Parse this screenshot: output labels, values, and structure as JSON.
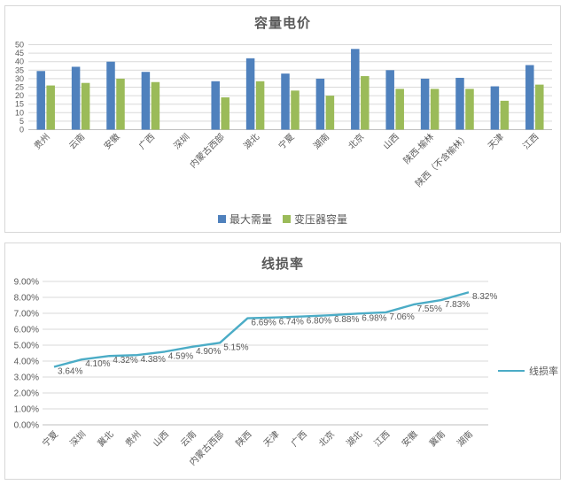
{
  "chart_data": [
    {
      "type": "bar",
      "title": "容量电价",
      "categories": [
        "贵州",
        "云南",
        "安徽",
        "广西",
        "深圳",
        "内蒙古西部",
        "湖北",
        "宁夏",
        "湖南",
        "北京",
        "山西",
        "陕西-榆林",
        "陕西（不含榆林）",
        "天津",
        "江西"
      ],
      "series": [
        {
          "name": "最大需量",
          "color": "#4F81BD",
          "values": [
            34.5,
            37,
            40,
            34,
            null,
            28.5,
            42,
            33,
            30,
            47.5,
            35,
            30,
            30.5,
            25.5,
            38
          ]
        },
        {
          "name": "变压器容量",
          "color": "#9BBB59",
          "values": [
            26,
            27.5,
            30,
            28,
            null,
            19,
            28.5,
            23,
            20,
            31.5,
            24,
            24,
            24,
            17,
            26.5
          ]
        }
      ],
      "ylim": [
        0,
        50
      ],
      "yticks": [
        "0",
        "5",
        "10",
        "15",
        "20",
        "25",
        "30",
        "35",
        "40",
        "45",
        "50"
      ],
      "grid": true,
      "legend_position": "bottom"
    },
    {
      "type": "line",
      "title": "线损率",
      "categories": [
        "宁夏",
        "深圳",
        "冀北",
        "贵州",
        "山西",
        "云南",
        "内蒙古西部",
        "陕西",
        "天津",
        "广西",
        "北京",
        "湖北",
        "江西",
        "安徽",
        "冀南",
        "湖南"
      ],
      "series": [
        {
          "name": "线损率",
          "color": "#4BACC6",
          "values": [
            3.64,
            4.1,
            4.32,
            4.38,
            4.59,
            4.9,
            5.15,
            6.69,
            6.74,
            6.8,
            6.88,
            6.98,
            7.06,
            7.55,
            7.83,
            8.32
          ]
        }
      ],
      "data_labels": [
        "3.64%",
        "4.10%",
        "4.32%",
        "4.38%",
        "4.59%",
        "4.90%",
        "5.15%",
        "6.69%",
        "6.74%",
        "6.80%",
        "6.88%",
        "6.98%",
        "7.06%",
        "7.55%",
        "7.83%",
        "8.32%"
      ],
      "ylim": [
        0,
        9
      ],
      "yticks": [
        "0.00%",
        "1.00%",
        "2.00%",
        "3.00%",
        "4.00%",
        "5.00%",
        "6.00%",
        "7.00%",
        "8.00%",
        "9.00%"
      ],
      "grid": true,
      "legend_position": "right"
    }
  ],
  "styles": {
    "grid_color": "#D9D9D9",
    "axis_color": "#BFBFBF",
    "text_color": "#595959",
    "label_color": "#595959"
  }
}
